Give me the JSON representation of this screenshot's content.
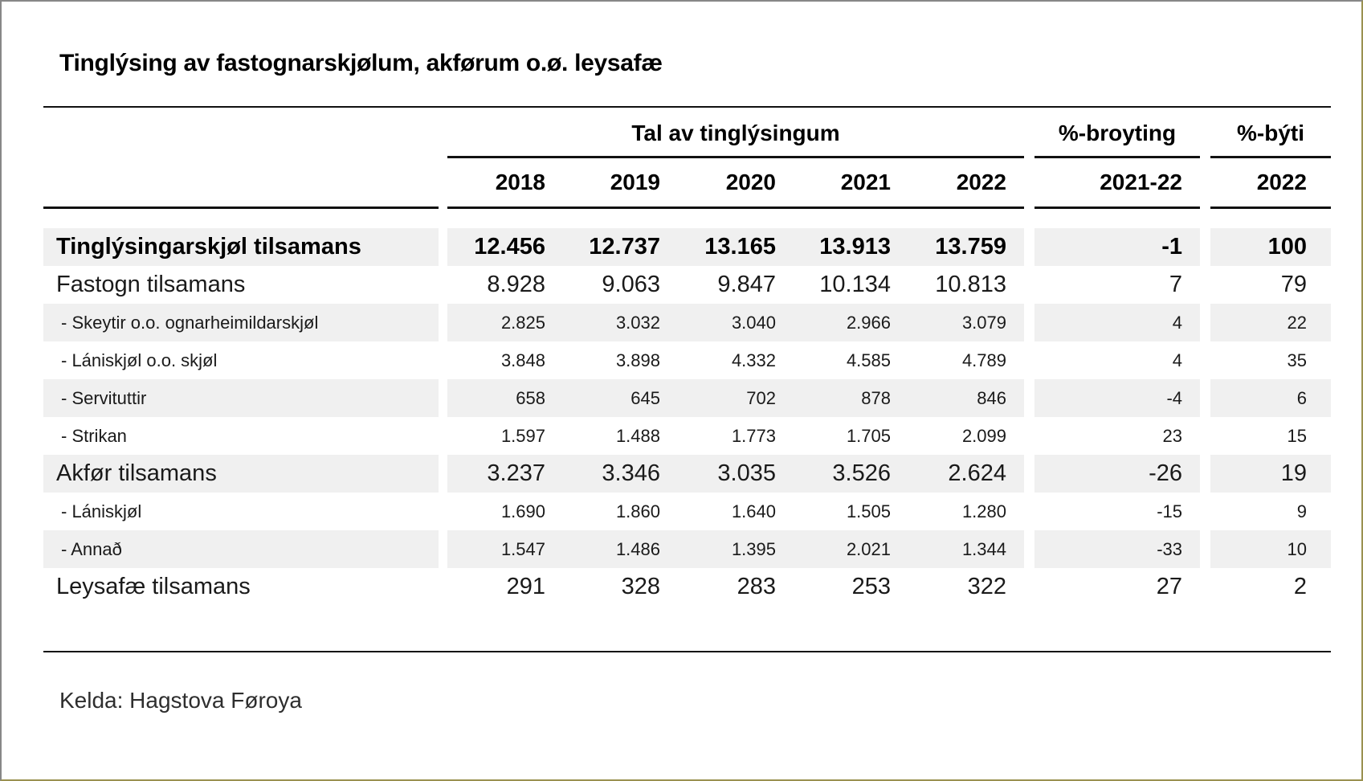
{
  "title": "Tinglýsing av fastognarskjølum, akførum o.ø. leysafæ",
  "source_note": "Kelda: Hagstova Føroya",
  "table": {
    "group_headers": {
      "counts": "Tal av tinglýsingum",
      "change": "%-broyting",
      "share": "%-býti"
    },
    "year_headers": [
      "2018",
      "2019",
      "2020",
      "2021",
      "2022"
    ],
    "change_period": "2021-22",
    "share_year": "2022",
    "rows": [
      {
        "label": "Tinglýsingarskjøl tilsamans",
        "values": [
          "12.456",
          "12.737",
          "13.165",
          "13.913",
          "13.759"
        ],
        "change": "-1",
        "share": "100",
        "style": "total-bold",
        "stripe": true
      },
      {
        "label": "Fastogn tilsamans",
        "values": [
          "8.928",
          "9.063",
          "9.847",
          "10.134",
          "10.813"
        ],
        "change": "7",
        "share": "79",
        "style": "total",
        "stripe": false
      },
      {
        "label": "- Skeytir o.o. ognarheimildarskjøl",
        "values": [
          "2.825",
          "3.032",
          "3.040",
          "2.966",
          "3.079"
        ],
        "change": "4",
        "share": "22",
        "style": "sub",
        "stripe": true
      },
      {
        "label": "- Lániskjøl o.o. skjøl",
        "values": [
          "3.848",
          "3.898",
          "4.332",
          "4.585",
          "4.789"
        ],
        "change": "4",
        "share": "35",
        "style": "sub",
        "stripe": false
      },
      {
        "label": "- Servituttir",
        "values": [
          "658",
          "645",
          "702",
          "878",
          "846"
        ],
        "change": "-4",
        "share": "6",
        "style": "sub",
        "stripe": true
      },
      {
        "label": "- Strikan",
        "values": [
          "1.597",
          "1.488",
          "1.773",
          "1.705",
          "2.099"
        ],
        "change": "23",
        "share": "15",
        "style": "sub",
        "stripe": false
      },
      {
        "label": "Akfør tilsamans",
        "values": [
          "3.237",
          "3.346",
          "3.035",
          "3.526",
          "2.624"
        ],
        "change": "-26",
        "share": "19",
        "style": "total",
        "stripe": true
      },
      {
        "label": "- Lániskjøl",
        "values": [
          "1.690",
          "1.860",
          "1.640",
          "1.505",
          "1.280"
        ],
        "change": "-15",
        "share": "9",
        "style": "sub",
        "stripe": false
      },
      {
        "label": "- Annað",
        "values": [
          "1.547",
          "1.486",
          "1.395",
          "2.021",
          "1.344"
        ],
        "change": "-33",
        "share": "10",
        "style": "sub",
        "stripe": true
      },
      {
        "label": "Leysafæ tilsamans",
        "values": [
          "291",
          "328",
          "283",
          "253",
          "322"
        ],
        "change": "27",
        "share": "2",
        "style": "total",
        "stripe": false
      }
    ]
  }
}
